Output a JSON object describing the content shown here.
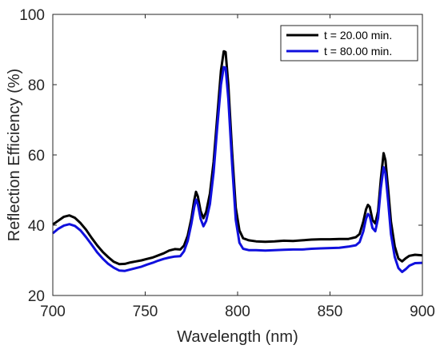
{
  "chart_data": {
    "type": "line",
    "xlabel": "Wavelength (nm)",
    "ylabel": "Reflection Efficiency (%)",
    "xlim": [
      700,
      900
    ],
    "ylim": [
      20,
      100
    ],
    "xticks": [
      700,
      750,
      800,
      850,
      900
    ],
    "yticks": [
      20,
      40,
      60,
      80,
      100
    ],
    "grid": false,
    "legend_position": "top-right",
    "series": [
      {
        "name": "t = 20.00 min.",
        "color": "#000000",
        "points": [
          [
            700,
            40.2
          ],
          [
            703,
            41.3
          ],
          [
            706,
            42.4
          ],
          [
            709,
            42.8
          ],
          [
            712,
            42.1
          ],
          [
            715,
            40.6
          ],
          [
            718,
            38.7
          ],
          [
            721,
            36.4
          ],
          [
            724,
            34.3
          ],
          [
            727,
            32.4
          ],
          [
            730,
            30.9
          ],
          [
            733,
            29.6
          ],
          [
            736,
            28.9
          ],
          [
            739,
            29.0
          ],
          [
            742,
            29.4
          ],
          [
            745,
            29.7
          ],
          [
            748,
            30.0
          ],
          [
            751,
            30.4
          ],
          [
            754,
            30.8
          ],
          [
            757,
            31.4
          ],
          [
            760,
            32.0
          ],
          [
            763,
            32.8
          ],
          [
            766,
            33.2
          ],
          [
            769,
            33.1
          ],
          [
            771,
            34.2
          ],
          [
            773,
            37.0
          ],
          [
            775,
            42.0
          ],
          [
            776.5,
            47.0
          ],
          [
            777.5,
            49.5
          ],
          [
            778.5,
            48.2
          ],
          [
            780,
            44.0
          ],
          [
            781.5,
            42.0
          ],
          [
            783,
            43.8
          ],
          [
            785,
            49.0
          ],
          [
            787,
            58.0
          ],
          [
            789,
            71.0
          ],
          [
            791,
            84.0
          ],
          [
            792.5,
            89.5
          ],
          [
            793.5,
            89.3
          ],
          [
            795,
            80.0
          ],
          [
            797,
            61.0
          ],
          [
            799,
            45.0
          ],
          [
            801,
            38.5
          ],
          [
            803,
            36.3
          ],
          [
            806,
            35.7
          ],
          [
            810,
            35.4
          ],
          [
            815,
            35.3
          ],
          [
            820,
            35.4
          ],
          [
            825,
            35.6
          ],
          [
            830,
            35.5
          ],
          [
            835,
            35.7
          ],
          [
            840,
            35.9
          ],
          [
            845,
            36.0
          ],
          [
            850,
            36.0
          ],
          [
            855,
            36.1
          ],
          [
            860,
            36.1
          ],
          [
            864,
            36.6
          ],
          [
            866,
            37.5
          ],
          [
            868,
            41.0
          ],
          [
            869.5,
            44.5
          ],
          [
            870.5,
            45.8
          ],
          [
            871.5,
            45.2
          ],
          [
            873,
            41.5
          ],
          [
            874.5,
            40.5
          ],
          [
            876,
            44.0
          ],
          [
            877.5,
            53.0
          ],
          [
            879,
            60.5
          ],
          [
            880,
            58.5
          ],
          [
            881.5,
            50.0
          ],
          [
            883,
            41.0
          ],
          [
            885,
            34.0
          ],
          [
            887,
            30.5
          ],
          [
            889,
            29.7
          ],
          [
            891,
            30.6
          ],
          [
            893,
            31.3
          ],
          [
            896,
            31.6
          ],
          [
            900,
            31.4
          ]
        ]
      },
      {
        "name": "t = 80.00 min.",
        "color": "#1010dd",
        "points": [
          [
            700,
            37.7
          ],
          [
            703,
            39.0
          ],
          [
            706,
            39.9
          ],
          [
            709,
            40.3
          ],
          [
            712,
            39.8
          ],
          [
            715,
            38.5
          ],
          [
            718,
            36.6
          ],
          [
            721,
            34.5
          ],
          [
            724,
            32.3
          ],
          [
            727,
            30.5
          ],
          [
            730,
            29.0
          ],
          [
            733,
            27.9
          ],
          [
            736,
            27.1
          ],
          [
            739,
            27.0
          ],
          [
            742,
            27.4
          ],
          [
            745,
            27.8
          ],
          [
            748,
            28.2
          ],
          [
            751,
            28.8
          ],
          [
            754,
            29.3
          ],
          [
            757,
            29.9
          ],
          [
            760,
            30.4
          ],
          [
            763,
            30.8
          ],
          [
            766,
            31.1
          ],
          [
            769,
            31.2
          ],
          [
            771,
            32.6
          ],
          [
            773,
            35.5
          ],
          [
            775,
            40.5
          ],
          [
            776.5,
            45.0
          ],
          [
            777.5,
            47.3
          ],
          [
            778.5,
            46.0
          ],
          [
            780,
            41.8
          ],
          [
            781.5,
            39.7
          ],
          [
            783,
            41.2
          ],
          [
            785,
            46.0
          ],
          [
            787,
            55.0
          ],
          [
            789,
            68.0
          ],
          [
            791,
            80.0
          ],
          [
            792.5,
            85.0
          ],
          [
            793.5,
            84.8
          ],
          [
            795,
            76.0
          ],
          [
            797,
            57.5
          ],
          [
            799,
            41.5
          ],
          [
            801,
            35.0
          ],
          [
            803,
            33.3
          ],
          [
            806,
            32.9
          ],
          [
            810,
            32.9
          ],
          [
            815,
            32.8
          ],
          [
            820,
            32.9
          ],
          [
            825,
            33.0
          ],
          [
            830,
            33.1
          ],
          [
            835,
            33.1
          ],
          [
            840,
            33.3
          ],
          [
            845,
            33.4
          ],
          [
            850,
            33.5
          ],
          [
            855,
            33.6
          ],
          [
            860,
            33.9
          ],
          [
            864,
            34.3
          ],
          [
            866,
            35.2
          ],
          [
            868,
            38.2
          ],
          [
            869.5,
            41.8
          ],
          [
            870.5,
            43.2
          ],
          [
            871.5,
            42.6
          ],
          [
            873,
            39.2
          ],
          [
            874.5,
            38.3
          ],
          [
            876,
            42.0
          ],
          [
            877.5,
            50.5
          ],
          [
            879,
            56.5
          ],
          [
            880,
            54.8
          ],
          [
            881.5,
            46.5
          ],
          [
            883,
            37.5
          ],
          [
            885,
            31.0
          ],
          [
            887,
            27.8
          ],
          [
            889,
            26.7
          ],
          [
            891,
            27.5
          ],
          [
            893,
            28.5
          ],
          [
            896,
            29.2
          ],
          [
            900,
            29.3
          ]
        ]
      }
    ]
  }
}
